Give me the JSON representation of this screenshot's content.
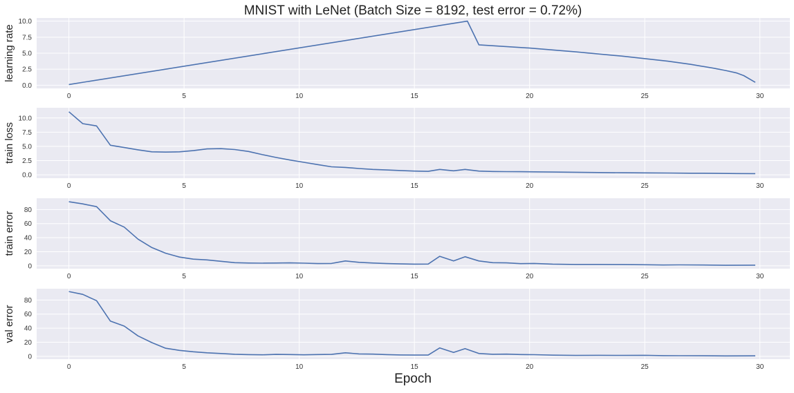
{
  "chart_data": {
    "type": "line",
    "title": "MNIST with LeNet (Batch Size = 8192, test error = 0.72%)",
    "xlabel": "Epoch",
    "xlim": [
      -1.4,
      31.3
    ],
    "xticks": [
      0,
      5,
      10,
      15,
      20,
      25,
      30
    ],
    "grid": true,
    "background": "#EAEAF2",
    "grid_color": "#FFFFFF",
    "line_color": "#4C72B0",
    "panels": [
      {
        "ylabel": "learning rate",
        "ylim": [
          -0.5,
          10.5
        ],
        "yticks": [
          0,
          2.5,
          5,
          7.5,
          10
        ],
        "ytick_labels": [
          "0.0",
          "2.5",
          "5.0",
          "7.5",
          "10.0"
        ],
        "series": [
          {
            "x": [
              0,
              17.3,
              17.8,
              20,
              22,
              24,
              26,
              27,
              28,
              28.5,
              29,
              29.3,
              29.8
            ],
            "y": [
              0.1,
              10,
              6.3,
              5.8,
              5.2,
              4.55,
              3.75,
              3.25,
              2.65,
              2.3,
              1.9,
              1.5,
              0.45
            ]
          }
        ]
      },
      {
        "ylabel": "train loss",
        "ylim": [
          -0.6,
          11.8
        ],
        "yticks": [
          0,
          2.5,
          5,
          7.5,
          10
        ],
        "ytick_labels": [
          "0.0",
          "2.5",
          "5.0",
          "7.5",
          "10.0"
        ],
        "series": [
          {
            "x": [
              0,
              0.6,
              1.2,
              1.8,
              2.4,
              3.0,
              3.6,
              4.2,
              4.8,
              5.4,
              6.0,
              6.6,
              7.2,
              7.8,
              8.4,
              9.0,
              9.6,
              10.2,
              10.8,
              11.4,
              12.0,
              12.6,
              13.2,
              13.8,
              14.4,
              15.0,
              15.6,
              16.1,
              16.7,
              17.2,
              17.8,
              18.4,
              19.0,
              19.6,
              20.2,
              21.0,
              22.0,
              23.0,
              24.0,
              25.0,
              26.0,
              27.0,
              28.0,
              29.0,
              29.8
            ],
            "y": [
              11.1,
              9.0,
              8.6,
              5.2,
              4.8,
              4.4,
              4.05,
              4.0,
              4.05,
              4.25,
              4.55,
              4.6,
              4.45,
              4.1,
              3.55,
              3.05,
              2.6,
              2.2,
              1.8,
              1.4,
              1.3,
              1.1,
              0.95,
              0.85,
              0.75,
              0.65,
              0.6,
              0.95,
              0.7,
              0.95,
              0.65,
              0.58,
              0.56,
              0.54,
              0.52,
              0.48,
              0.44,
              0.4,
              0.36,
              0.34,
              0.31,
              0.28,
              0.26,
              0.22,
              0.2
            ]
          }
        ]
      },
      {
        "ylabel": "train error",
        "ylim": [
          -4,
          96
        ],
        "yticks": [
          0,
          20,
          40,
          60,
          80
        ],
        "ytick_labels": [
          "0",
          "20",
          "40",
          "60",
          "80"
        ],
        "series": [
          {
            "x": [
              0,
              0.6,
              1.2,
              1.8,
              2.4,
              3.0,
              3.6,
              4.2,
              4.8,
              5.4,
              6.0,
              6.6,
              7.2,
              7.8,
              8.4,
              9.0,
              9.6,
              10.2,
              10.8,
              11.4,
              12.0,
              12.6,
              13.2,
              13.8,
              14.4,
              15.0,
              15.6,
              16.1,
              16.7,
              17.2,
              17.8,
              18.4,
              19.0,
              19.6,
              20.2,
              21.0,
              22.0,
              23.0,
              24.0,
              25.0,
              25.8,
              26.5,
              27.5,
              28.5,
              29.8
            ],
            "y": [
              91,
              88,
              84,
              64,
              55,
              38,
              26,
              18,
              12.5,
              9.5,
              8.5,
              6.5,
              4.5,
              4,
              3.8,
              4,
              4.2,
              3.8,
              3.3,
              3.5,
              7,
              5,
              4,
              3.3,
              2.8,
              2.5,
              2.6,
              13.5,
              7,
              13,
              7,
              4.5,
              4.2,
              3.2,
              3.5,
              2.5,
              2,
              2,
              1.8,
              1.6,
              1.2,
              1.4,
              1.2,
              0.8,
              1
            ]
          }
        ]
      },
      {
        "ylabel": "val error",
        "ylim": [
          -4,
          96
        ],
        "yticks": [
          0,
          20,
          40,
          60,
          80
        ],
        "ytick_labels": [
          "0",
          "20",
          "40",
          "60",
          "80"
        ],
        "series": [
          {
            "x": [
              0,
              0.6,
              1.2,
              1.8,
              2.4,
              3.0,
              3.6,
              4.2,
              4.8,
              5.4,
              6.0,
              6.6,
              7.2,
              7.8,
              8.4,
              9.0,
              9.6,
              10.2,
              10.8,
              11.4,
              12.0,
              12.6,
              13.2,
              13.8,
              14.4,
              15.0,
              15.6,
              16.1,
              16.7,
              17.2,
              17.8,
              18.4,
              19.0,
              19.6,
              20.2,
              21.0,
              22.0,
              23.0,
              24.0,
              25.0,
              25.8,
              26.5,
              27.5,
              28.5,
              29.8
            ],
            "y": [
              92,
              88,
              79,
              50,
              43,
              29,
              19.5,
              11.5,
              8.5,
              6.5,
              5,
              4,
              3,
              2.5,
              2.2,
              2.8,
              2.6,
              2.2,
              2.6,
              2.8,
              5,
              3.5,
              3.2,
              2.5,
              2,
              1.8,
              1.8,
              12,
              5.5,
              11,
              4,
              3,
              3.2,
              2.6,
              2.4,
              1.7,
              1.3,
              1.5,
              1.3,
              1.5,
              1,
              0.9,
              0.8,
              0.6,
              0.7
            ]
          }
        ]
      }
    ]
  }
}
